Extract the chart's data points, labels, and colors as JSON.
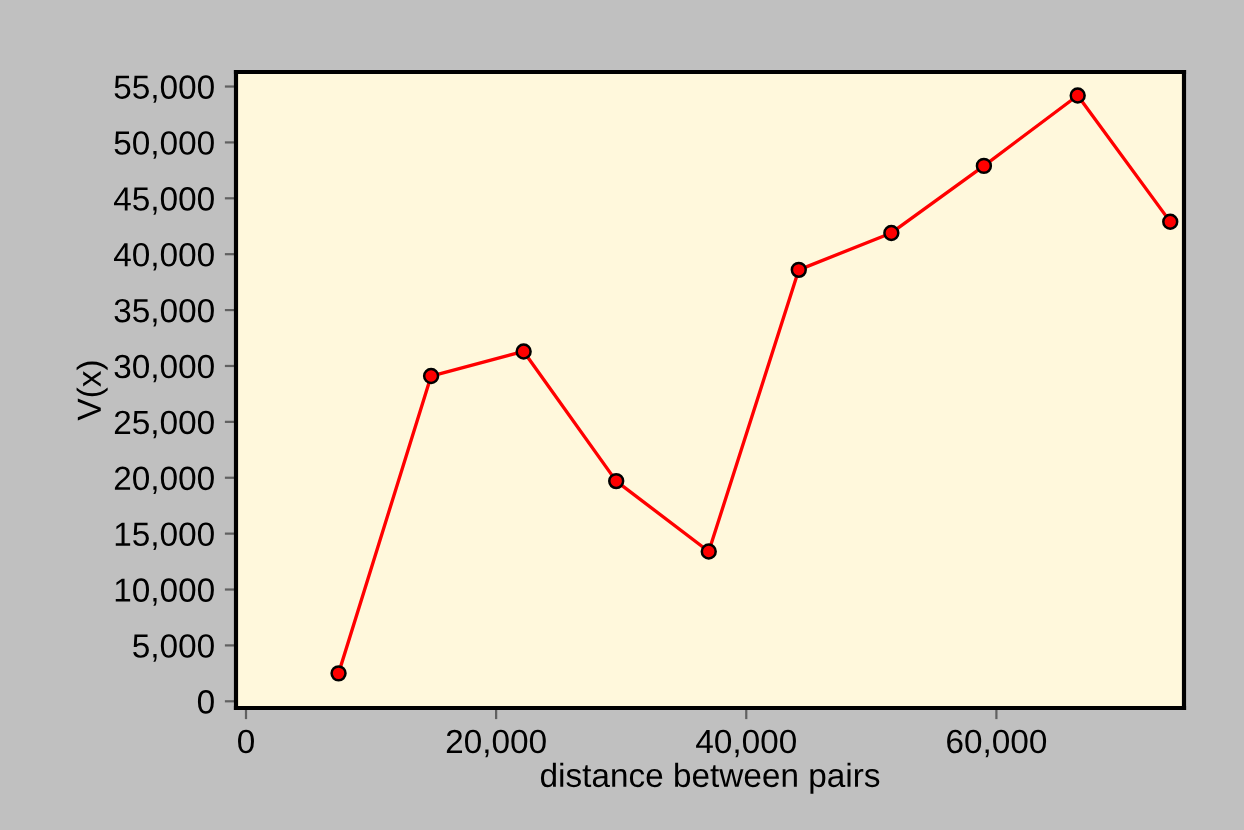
{
  "chart_data": {
    "type": "line",
    "xlabel": "distance between pairs",
    "ylabel": "V(x)",
    "x": [
      7400,
      14800,
      22200,
      29600,
      37000,
      44200,
      51600,
      59000,
      66500,
      73900
    ],
    "series": [
      {
        "color": "#ff0000",
        "values": [
          2500,
          29100,
          31300,
          19700,
          13400,
          38600,
          41900,
          47900,
          54200,
          42900
        ]
      }
    ],
    "xlim": [
      -800,
      75000
    ],
    "ylim": [
      -600,
      56300
    ],
    "xticks": [
      {
        "value": 0,
        "label": "0"
      },
      {
        "value": 20000,
        "label": "20,000"
      },
      {
        "value": 40000,
        "label": "40,000"
      },
      {
        "value": 60000,
        "label": "60,000"
      }
    ],
    "yticks": [
      {
        "value": 0,
        "label": "0"
      },
      {
        "value": 5000,
        "label": "5,000"
      },
      {
        "value": 10000,
        "label": "10,000"
      },
      {
        "value": 15000,
        "label": "15,000"
      },
      {
        "value": 20000,
        "label": "20,000"
      },
      {
        "value": 25000,
        "label": "25,000"
      },
      {
        "value": 30000,
        "label": "30,000"
      },
      {
        "value": 35000,
        "label": "35,000"
      },
      {
        "value": 40000,
        "label": "40,000"
      },
      {
        "value": 45000,
        "label": "45,000"
      },
      {
        "value": 50000,
        "label": "50,000"
      },
      {
        "value": 55000,
        "label": "55,000"
      }
    ],
    "marker": "circle",
    "line_style": "solid",
    "grid": false,
    "legend": false
  }
}
